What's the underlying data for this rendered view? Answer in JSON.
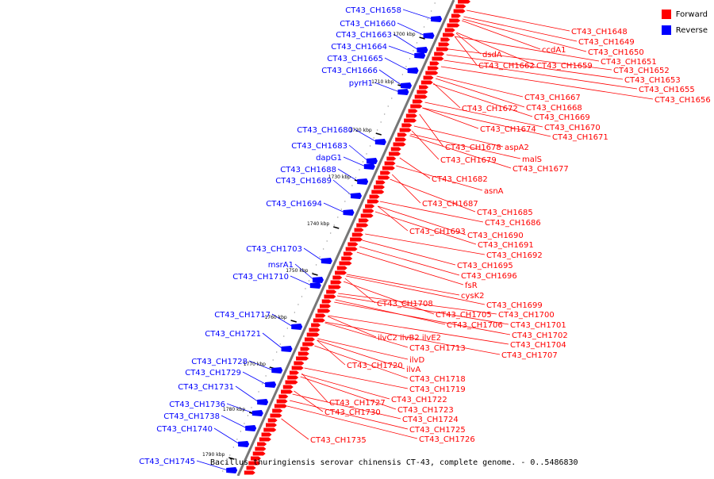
{
  "legend": {
    "forward_label": "Forward",
    "reverse_label": "Reverse",
    "forward_color": "#ff0000",
    "reverse_color": "#0000ff"
  },
  "caption": "Bacillus thuringiensis serovar chinensis CT-43, complete genome. - 0..5486830",
  "ticks": [
    "1700 kbp",
    "1710 kbp",
    "1720 kbp",
    "1730 kbp",
    "1740 kbp",
    "1750 kbp",
    "1760 kbp",
    "1770 kbp",
    "1780 kbp",
    "1790 kbp"
  ],
  "reverse_labels": [
    "CT43_CH1658",
    "CT43_CH1660",
    "CT43_CH1663",
    "CT43_CH1664",
    "CT43_CH1665",
    "CT43_CH1666",
    "pyrH1",
    "CT43_CH1680",
    "CT43_CH1683",
    "dapG1",
    "CT43_CH1688",
    "CT43_CH1689",
    "CT43_CH1694",
    "CT43_CH1703",
    "msrA1",
    "CT43_CH1710",
    "CT43_CH1717",
    "CT43_CH1721",
    "CT43_CH1728",
    "CT43_CH1729",
    "CT43_CH1731",
    "CT43_CH1736",
    "CT43_CH1738",
    "CT43_CH1740",
    "CT43_CH1745"
  ],
  "forward_labels": [
    "CT43_CH1648",
    "CT43_CH1649",
    "ccdA1",
    "CT43_CH1650",
    "dsdA",
    "CT43_CH1651",
    "CT43_CH1662",
    "CT43_CH1659",
    "CT43_CH1652",
    "CT43_CH1653",
    "CT43_CH1655",
    "CT43_CH1656",
    "CT43_CH1667",
    "CT43_CH1672",
    "CT43_CH1668",
    "CT43_CH1669",
    "CT43_CH1674",
    "CT43_CH1670",
    "CT43_CH1671",
    "CT43_CH1678",
    "aspA2",
    "malS",
    "CT43_CH1679",
    "CT43_CH1677",
    "CT43_CH1682",
    "asnA",
    "CT43_CH1687",
    "CT43_CH1685",
    "CT43_CH1686",
    "CT43_CH1693",
    "CT43_CH1690",
    "CT43_CH1691",
    "CT43_CH1692",
    "CT43_CH1695",
    "CT43_CH1696",
    "fsR",
    "cysK2",
    "CT43_CH1708",
    "CT43_CH1699",
    "CT43_CH1705",
    "CT43_CH1700",
    "CT43_CH1706",
    "CT43_CH1701",
    "CT43_CH1702",
    "ilvC2 ilvB2 ilvE2",
    "CT43_CH1713",
    "CT43_CH1704",
    "CT43_CH1707",
    "ilvD",
    "CT43_CH1720",
    "ilvA",
    "CT43_CH1718",
    "CT43_CH1719",
    "CT43_CH1722",
    "CT43_CH1727",
    "CT43_CH1723",
    "CT43_CH1730",
    "CT43_CH1724",
    "CT43_CH1725",
    "CT43_CH1726",
    "CT43_CH1735"
  ]
}
